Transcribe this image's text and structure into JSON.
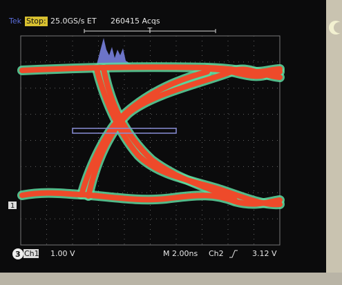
{
  "header": {
    "brand": "Tek",
    "state": "Stop:",
    "sample_rate": "25.0GS/s ET",
    "acquisitions": "260415 Acqs",
    "trigger_marker": "T"
  },
  "markers": {
    "channel_marker": "1",
    "channel_badge": "3"
  },
  "footer": {
    "channel": "Ch1",
    "scale": "1.00 V",
    "timebase": "M 2.00ns",
    "trigger_source": "Ch2",
    "trigger_level": "3.12 V"
  }
}
